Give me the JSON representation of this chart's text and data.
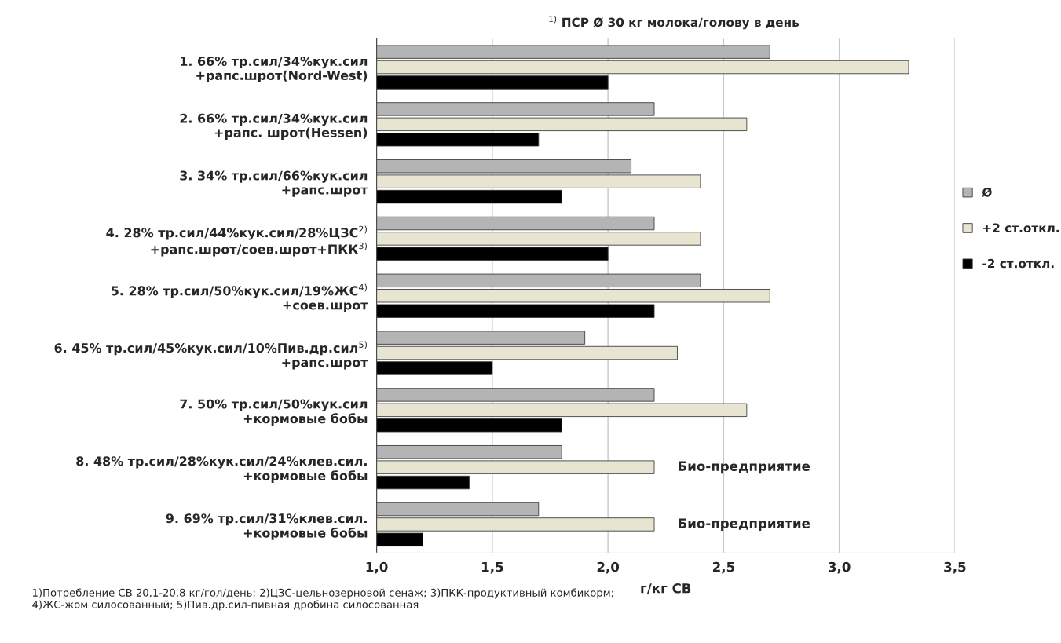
{
  "chart_data": {
    "type": "bar",
    "orientation": "horizontal",
    "title": "$^{1)}$ ПСР Ø 30 кг молока/голову в день",
    "xlabel": "г/кг СВ",
    "categories": [
      "1. 66% тр.сил/34%кук.сил\n+рапс.шрот(Nord-West)",
      "2. 66% тр.сил/34%кук.сил\n+рапс. шрот(Hessen)",
      "3. 34% тр.сил/66%кук.сил\n+рапс.шрот",
      "4. 28% тр.сил/44%кук.сил/28%ЦЗС$^{2)}$\n+рапс.шрот/соев.шрот+ПКК$^{3)}$",
      "5. 28% тр.сил/50%кук.сил/19%ЖС$^{4)}$\n+соев.шрот",
      "6. 45% тр.сил/45%кук.сил/10%Пив.др.сил$^{5)}$\n+рапс.шрот",
      "7. 50% тр.сил/50%кук.сил\n+кормовые бобы",
      "8. 48% тр.сил/28%кук.сил/24%клев.сил.\n+кормовые бобы",
      "9. 69% тр.сил/31%клев.сил.\n+кормовые бобы"
    ],
    "series": [
      {
        "name": "Ø",
        "color": "#b4b4b4",
        "values": [
          2.7,
          2.2,
          2.1,
          2.2,
          2.4,
          1.9,
          2.2,
          1.8,
          1.7
        ]
      },
      {
        "name": "+2 ст.откл.",
        "color": "#e8e4d2",
        "values": [
          3.3,
          2.6,
          2.4,
          2.4,
          2.7,
          2.3,
          2.6,
          2.2,
          2.2
        ]
      },
      {
        "name": "-2 ст.откл.",
        "color": "#000000",
        "values": [
          2.0,
          1.7,
          1.8,
          2.0,
          2.2,
          1.5,
          1.8,
          1.4,
          1.2
        ]
      }
    ],
    "xlim": [
      1.0,
      3.5
    ],
    "xticks": [
      {
        "value": 1.0,
        "label": "1,0"
      },
      {
        "value": 1.5,
        "label": "1,5"
      },
      {
        "value": 2.0,
        "label": "2,0"
      },
      {
        "value": 2.5,
        "label": "2,5"
      },
      {
        "value": 3.0,
        "label": "3,0"
      },
      {
        "value": 3.5,
        "label": "3,5"
      }
    ],
    "grid": "x",
    "legend": "right",
    "annotations": [
      "Био-предприятие",
      "Био-предприятие",
      "1)Потребление СВ 20,1-20,8 кг/гол/день; 2)ЦЗС-цельнозерновой сенаж; 3)ПКК-продуктивный комбикорм; 4)ЖС-жом силосованный; 5)Пив.др.сил-пивная дробина силосованная"
    ]
  }
}
